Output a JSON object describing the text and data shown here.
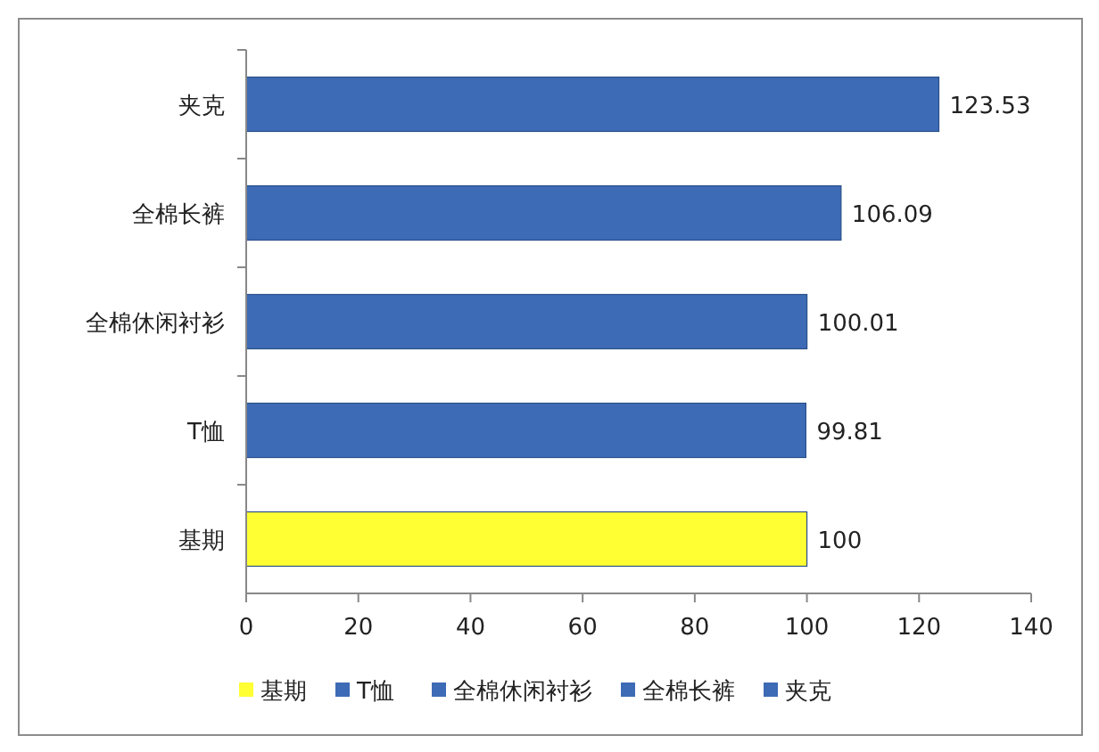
{
  "chart_data": {
    "type": "bar",
    "orientation": "horizontal",
    "stacked": true,
    "categories": [
      "夹克",
      "全棉长裤",
      "全棉休闲衬衫",
      "T恤",
      "基期"
    ],
    "series": [
      {
        "name": "基期",
        "color": "#ffff33",
        "values": [
          null,
          null,
          null,
          null,
          100
        ]
      },
      {
        "name": "T恤",
        "color": "#3d6bb5",
        "values": [
          null,
          null,
          null,
          99.81,
          null
        ]
      },
      {
        "name": "全棉休闲衬衫",
        "color": "#3d6bb5",
        "values": [
          null,
          null,
          100.01,
          null,
          null
        ]
      },
      {
        "name": "全棉长裤",
        "color": "#3d6bb5",
        "values": [
          null,
          106.09,
          null,
          null,
          null
        ]
      },
      {
        "name": "夹克",
        "color": "#3d6bb5",
        "values": [
          123.53,
          null,
          null,
          null,
          null
        ]
      }
    ],
    "xlim": [
      0,
      140
    ],
    "xticks": [
      0,
      20,
      40,
      60,
      80,
      100,
      120,
      140
    ],
    "data_labels": true,
    "legend": "bottom",
    "grid": false
  }
}
